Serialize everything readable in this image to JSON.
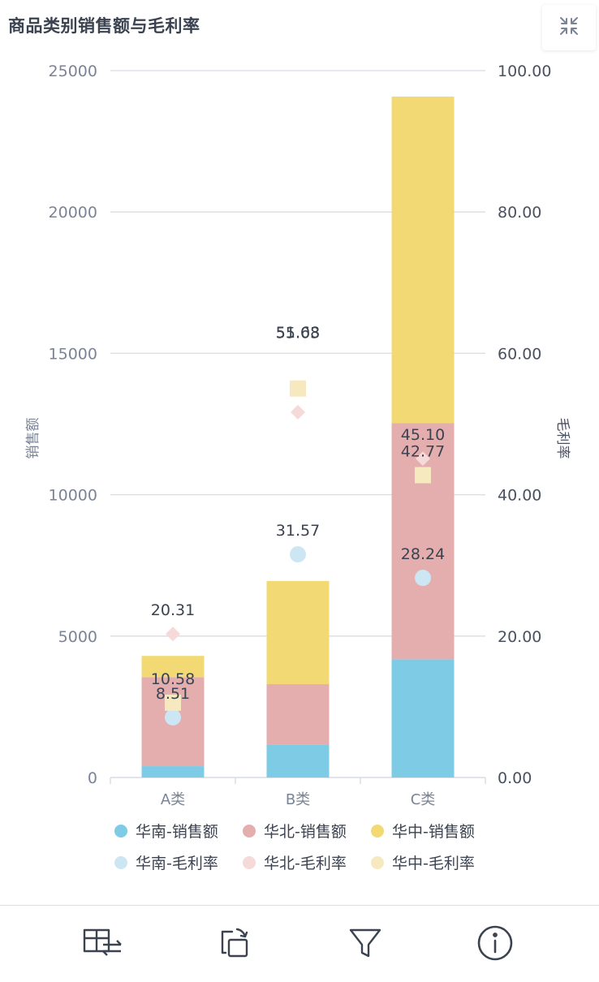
{
  "title": "商品类别销售额与毛利率",
  "colors": {
    "south_sales": "#7ecbe6",
    "north_sales": "#e4aeae",
    "central_sales": "#f2d974",
    "south_margin": "#cde6f4",
    "north_margin": "#f6d9d9",
    "central_margin": "#f6e9bf",
    "axis_text": "#7a8496",
    "grid": "#d8dce6"
  },
  "chart_data": {
    "type": "bar",
    "stacked": true,
    "title": "商品类别销售额与毛利率",
    "categories": [
      "A类",
      "B类",
      "C类"
    ],
    "ylabel": "销售额",
    "y2label": "毛利率",
    "ylim": [
      0,
      25000
    ],
    "y2lim": [
      0,
      100
    ],
    "yticks": [
      "0",
      "5000",
      "10000",
      "15000",
      "20000",
      "25000"
    ],
    "y2ticks": [
      "0.00",
      "20.00",
      "40.00",
      "60.00",
      "80.00",
      "100.00"
    ],
    "series": [
      {
        "name": "华南-销售额",
        "kind": "bar",
        "axis": "left",
        "values": [
          400,
          1150,
          4180
        ]
      },
      {
        "name": "华北-销售额",
        "kind": "bar",
        "axis": "left",
        "values": [
          3150,
          2150,
          8350
        ]
      },
      {
        "name": "华中-销售额",
        "kind": "bar",
        "axis": "left",
        "values": [
          750,
          3650,
          11550
        ]
      },
      {
        "name": "华南-毛利率",
        "kind": "scatter",
        "marker": "circle",
        "axis": "right",
        "values": [
          8.51,
          31.57,
          28.24
        ],
        "labels": [
          "8.51",
          "31.57",
          "28.24"
        ]
      },
      {
        "name": "华北-毛利率",
        "kind": "scatter",
        "marker": "diamond",
        "axis": "right",
        "values": [
          20.31,
          51.68,
          45.1
        ],
        "labels": [
          "20.31",
          "51.68",
          "45.10"
        ]
      },
      {
        "name": "华中-毛利率",
        "kind": "scatter",
        "marker": "square",
        "axis": "right",
        "values": [
          10.58,
          55.03,
          42.77
        ],
        "labels": [
          "10.58",
          "55.03",
          "42.77"
        ]
      }
    ],
    "legend": [
      {
        "name": "华南-销售额",
        "marker": "circle",
        "color": "#7ecbe6"
      },
      {
        "name": "华北-销售额",
        "marker": "circle",
        "color": "#e4aeae"
      },
      {
        "name": "华中-销售额",
        "marker": "circle",
        "color": "#f2d974"
      },
      {
        "name": "华南-毛利率",
        "marker": "circle",
        "color": "#cde6f4"
      },
      {
        "name": "华北-毛利率",
        "marker": "circle",
        "color": "#f6d9d9"
      },
      {
        "name": "华中-毛利率",
        "marker": "circle",
        "color": "#f6e9bf"
      }
    ],
    "legend_position": "bottom"
  },
  "toolbar": {
    "icons": [
      "switch-table-icon",
      "rotate-chart-icon",
      "filter-icon",
      "info-icon"
    ]
  },
  "collapse_icon": "collapse-arrows-icon"
}
